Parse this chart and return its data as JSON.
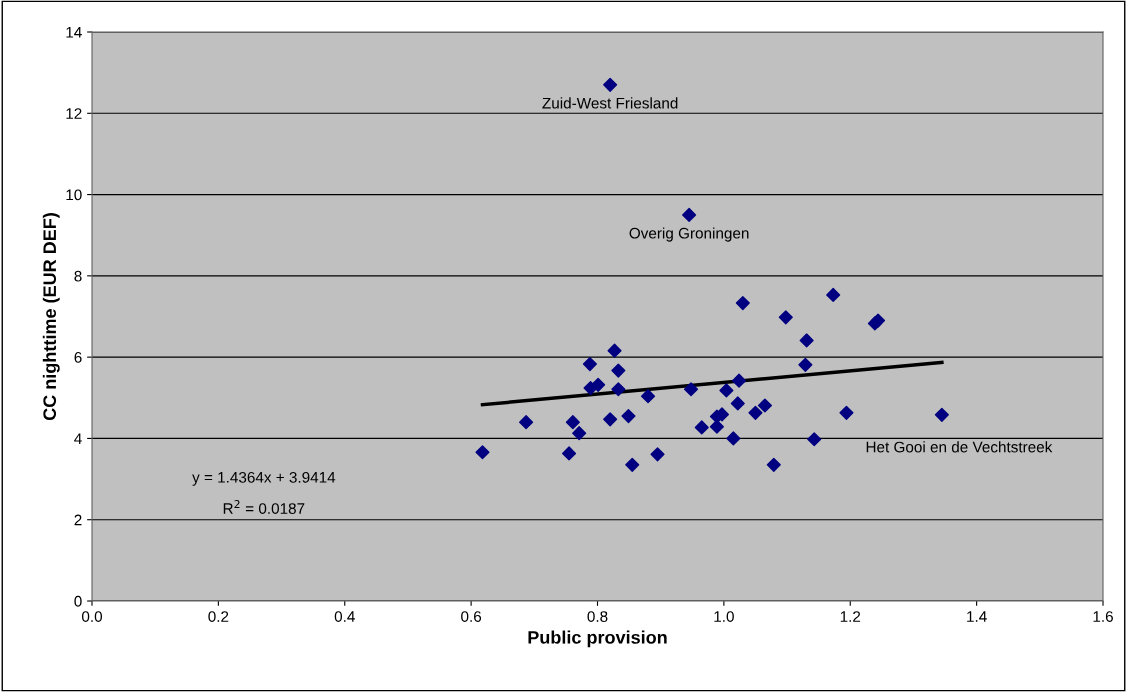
{
  "chart_data": {
    "type": "scatter",
    "xlabel": "Public provision",
    "ylabel": "CC nighttime (EUR DEF)",
    "xlim": [
      0.0,
      1.6
    ],
    "xticks": [
      {
        "value": 0,
        "label": "0.0"
      },
      0.2,
      0.4,
      0.6,
      0.8,
      {
        "value": 1,
        "label": "1.0"
      },
      1.2,
      1.4,
      1.6
    ],
    "ylim": [
      0,
      14
    ],
    "yticks": [
      0,
      2,
      4,
      6,
      8,
      10,
      12,
      14
    ],
    "grid": "y",
    "legend": false,
    "series": [
      {
        "color": "#000080",
        "marker": "diamond",
        "x": [
          0.618,
          0.687,
          0.755,
          0.761,
          0.771,
          0.788,
          0.789,
          0.801,
          0.82,
          0.827,
          0.833,
          0.833,
          0.849,
          0.855,
          0.88,
          0.895,
          0.948,
          0.965,
          0.989,
          0.989,
          0.997,
          1.004,
          1.015,
          1.022,
          1.024,
          1.03,
          1.05,
          1.065,
          1.079,
          1.098,
          1.173,
          1.239,
          1.244,
          1.131,
          1.129,
          1.194,
          1.345,
          1.143,
          0.82,
          0.945
        ],
        "values": [
          3.66,
          4.4,
          3.63,
          4.4,
          4.13,
          5.83,
          5.24,
          5.32,
          4.47,
          6.16,
          5.67,
          5.21,
          4.55,
          3.35,
          5.04,
          3.61,
          5.21,
          4.27,
          4.54,
          4.29,
          4.59,
          5.18,
          4.0,
          4.86,
          5.42,
          7.33,
          4.63,
          4.81,
          3.35,
          6.98,
          7.53,
          6.83,
          6.9,
          6.41,
          5.81,
          4.63,
          4.58,
          3.98,
          12.7,
          9.5
        ]
      },
      {
        "type": "line",
        "color": "#000000",
        "x": [
          0.618,
          1.345
        ],
        "values": [
          4.83,
          5.87
        ]
      }
    ],
    "annotations": [
      {
        "text": "Zuid-West Friesland",
        "x": 0.82,
        "y": 12.7
      },
      {
        "text": "Overig Groningen",
        "x": 0.945,
        "y": 9.5
      },
      {
        "text": "Het Gooi en de Vechtstreek",
        "x": 1.345,
        "y": 4.58
      },
      "y = 1.4364x + 3.9414",
      "R$^{2}$ = 0.0187"
    ]
  }
}
